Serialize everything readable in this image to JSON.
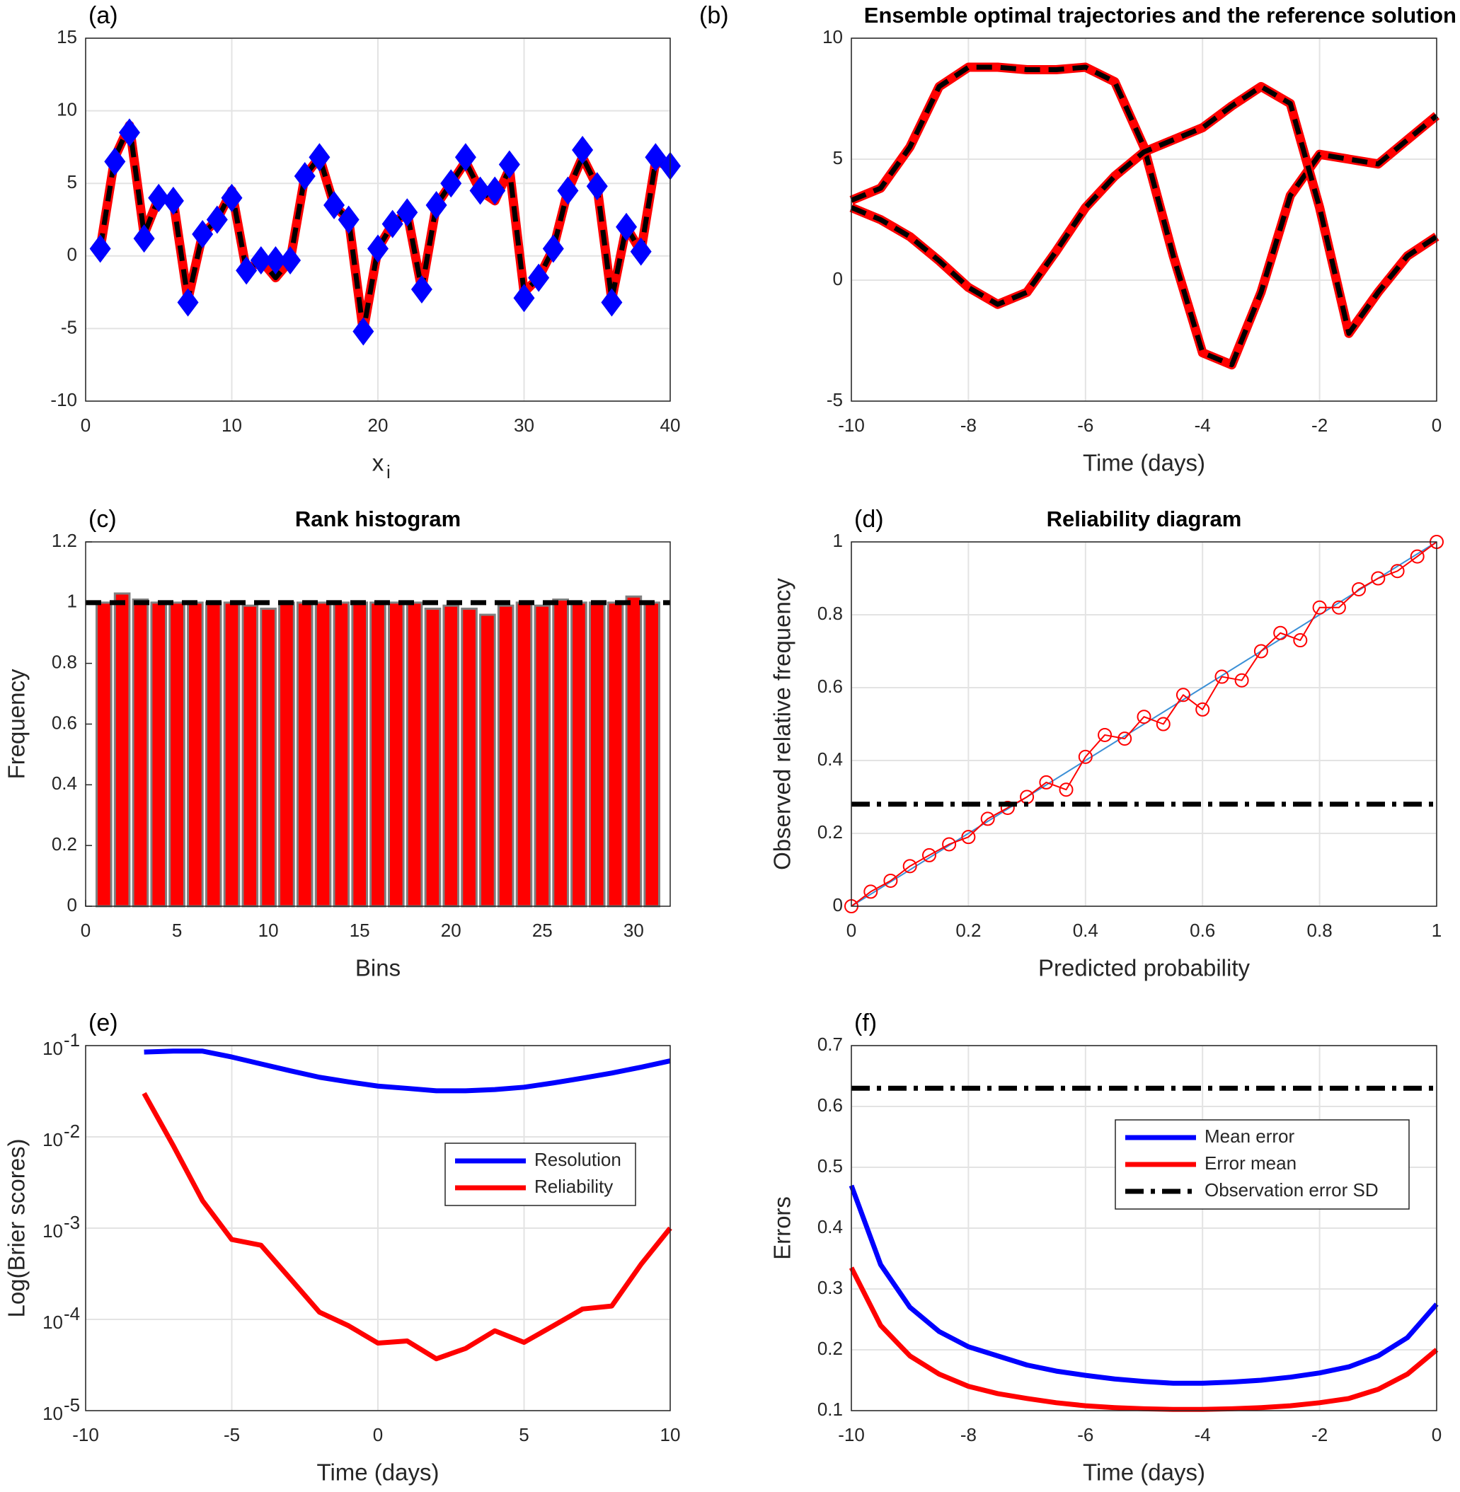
{
  "chart_data": [
    {
      "type": "line",
      "label": "(a)",
      "xlabel": "x",
      "xlabel_sub": "i",
      "x": [
        1,
        2,
        3,
        4,
        5,
        6,
        7,
        8,
        9,
        10,
        11,
        12,
        13,
        14,
        15,
        16,
        17,
        18,
        19,
        20,
        21,
        22,
        23,
        24,
        25,
        26,
        27,
        28,
        29,
        30,
        31,
        32,
        33,
        34,
        35,
        36,
        37,
        38,
        39,
        40
      ],
      "xlim": [
        0,
        40
      ],
      "xticks": [
        0,
        10,
        20,
        30,
        40
      ],
      "ylim": [
        -10,
        15
      ],
      "yticks": [
        -10,
        -5,
        0,
        5,
        10,
        15
      ],
      "grid": true,
      "halo_color": "#ff0000",
      "series": [
        {
          "color": "#000000",
          "style": "dashed",
          "values": [
            0.5,
            6.8,
            9,
            1.5,
            4,
            3.8,
            -3,
            1.5,
            2.5,
            4.5,
            -1,
            -0.3,
            -1.5,
            -0.3,
            5.5,
            6.8,
            3.5,
            2.5,
            -5.2,
            0.5,
            2.2,
            3,
            -2.3,
            3.5,
            5,
            6.5,
            4.5,
            3.8,
            6,
            -2.5,
            -1.5,
            0.5,
            4.5,
            6.8,
            4.8,
            -3,
            2,
            0.3,
            6.5,
            6.2
          ]
        },
        {
          "color": "#0000ff",
          "style": "none",
          "marker": "diamond",
          "values": [
            0.5,
            6.5,
            8.5,
            1.2,
            4,
            3.8,
            -3.2,
            1.5,
            2.5,
            4,
            -1,
            -0.3,
            -0.3,
            -0.3,
            5.5,
            6.8,
            3.5,
            2.5,
            -5.2,
            0.5,
            2.2,
            3,
            -2.3,
            3.5,
            5,
            6.8,
            4.5,
            4.5,
            6.3,
            -2.9,
            -1.5,
            0.5,
            4.5,
            7.3,
            4.8,
            -3.2,
            2,
            0.3,
            6.8,
            6.2
          ]
        }
      ]
    },
    {
      "type": "line",
      "label": "(b)",
      "title": "Ensemble optimal trajectories and the reference solution",
      "xlabel": "Time (days)",
      "x": [
        -10,
        -9.5,
        -9,
        -8.5,
        -8,
        -7.5,
        -7,
        -6.5,
        -6,
        -5.5,
        -5,
        -4.5,
        -4,
        -3.5,
        -3,
        -2.5,
        -2,
        -1.5,
        -1,
        -0.5,
        0
      ],
      "xlim": [
        -10,
        0
      ],
      "xticks": [
        -10,
        -8,
        -6,
        -4,
        -2,
        0
      ],
      "ylim": [
        -5,
        10
      ],
      "yticks": [
        -5,
        0,
        5,
        10
      ],
      "grid": true,
      "halo_color": "#ff0000",
      "series": [
        {
          "color": "#000000",
          "style": "dashed",
          "values": [
            3.3,
            3.8,
            5.5,
            8,
            8.8,
            8.8,
            8.7,
            8.7,
            8.8,
            8.2,
            5.5,
            1,
            -3,
            -3.5,
            -0.5,
            3.5,
            5.2,
            5,
            4.8,
            5.8,
            6.8
          ]
        },
        {
          "color": "#000000",
          "style": "dashed",
          "values": [
            3,
            2.5,
            1.8,
            0.8,
            -0.3,
            -1,
            -0.5,
            1.2,
            3,
            4.3,
            5.3,
            5.8,
            6.3,
            7.2,
            8,
            7.3,
            3,
            -2.2,
            -0.5,
            1,
            1.8
          ]
        }
      ]
    },
    {
      "type": "bar",
      "label": "(c)",
      "title": "Rank histogram",
      "xlabel": "Bins",
      "ylabel": "Frequency",
      "x": [
        1,
        2,
        3,
        4,
        5,
        6,
        7,
        8,
        9,
        10,
        11,
        12,
        13,
        14,
        15,
        16,
        17,
        18,
        19,
        20,
        21,
        22,
        23,
        24,
        25,
        26,
        27,
        28,
        29,
        30,
        31
      ],
      "values": [
        1,
        1.03,
        1.01,
        1,
        1,
        1,
        1,
        1,
        0.99,
        0.98,
        1,
        1,
        1,
        1,
        1,
        1,
        1,
        1,
        0.98,
        0.99,
        0.98,
        0.96,
        0.99,
        1,
        0.99,
        1.01,
        1,
        1,
        1,
        1.02,
        1
      ],
      "color": "#ff0000",
      "edge_color": "#808080",
      "reference": 1,
      "reference_color": "#000000",
      "xlim": [
        0,
        32
      ],
      "xticks": [
        0,
        5,
        10,
        15,
        20,
        25,
        30
      ],
      "ylim": [
        0,
        1.2
      ],
      "yticks": [
        0,
        0.2,
        0.4,
        0.6,
        0.8,
        1,
        1.2
      ],
      "grid": false
    },
    {
      "type": "line",
      "label": "(d)",
      "title": "Reliability diagram",
      "xlabel": "Predicted probability",
      "ylabel": "Observed relative frequency",
      "xlim": [
        0,
        1
      ],
      "xticks": [
        0,
        0.2,
        0.4,
        0.6,
        0.8,
        1
      ],
      "ylim": [
        0,
        1
      ],
      "yticks": [
        0,
        0.2,
        0.4,
        0.6,
        0.8,
        1
      ],
      "grid": true,
      "reference": 0.28,
      "reference_color": "#000000",
      "series": [
        {
          "color": "#3b8fd6",
          "style": "thin",
          "x": [
            0,
            1
          ],
          "values": [
            0,
            1
          ]
        },
        {
          "color": "#ff0000",
          "style": "thin",
          "marker": "circle",
          "x": [
            0,
            0.033,
            0.067,
            0.1,
            0.133,
            0.167,
            0.2,
            0.233,
            0.267,
            0.3,
            0.333,
            0.367,
            0.4,
            0.433,
            0.467,
            0.5,
            0.533,
            0.567,
            0.6,
            0.633,
            0.667,
            0.7,
            0.733,
            0.767,
            0.8,
            0.833,
            0.867,
            0.9,
            0.933,
            0.967,
            1
          ],
          "values": [
            0,
            0.04,
            0.07,
            0.11,
            0.14,
            0.17,
            0.19,
            0.24,
            0.27,
            0.3,
            0.34,
            0.32,
            0.41,
            0.47,
            0.46,
            0.52,
            0.5,
            0.58,
            0.54,
            0.63,
            0.62,
            0.7,
            0.75,
            0.73,
            0.82,
            0.82,
            0.87,
            0.9,
            0.92,
            0.96,
            1
          ]
        }
      ]
    },
    {
      "type": "line",
      "label": "(e)",
      "xlabel": "Time (days)",
      "ylabel": "Log(Brier scores)",
      "x": [
        -8,
        -7,
        -6,
        -5,
        -4,
        -3,
        -2,
        -1,
        0,
        1,
        2,
        3,
        4,
        5,
        6,
        7,
        8,
        9,
        10
      ],
      "xlim": [
        -10,
        10
      ],
      "xticks": [
        -10,
        -5,
        0,
        5,
        10
      ],
      "ylog": true,
      "ylim": [
        1e-05,
        0.1
      ],
      "yticks": [
        {
          "value": 1e-05,
          "label": "10",
          "exp": "-5"
        },
        {
          "value": 0.0001,
          "label": "10",
          "exp": "-4"
        },
        {
          "value": 0.001,
          "label": "10",
          "exp": "-3"
        },
        {
          "value": 0.01,
          "label": "10",
          "exp": "-2"
        },
        {
          "value": 0.1,
          "label": "10",
          "exp": "-1"
        }
      ],
      "grid": true,
      "legend": "center right",
      "series": [
        {
          "name": "Resolution",
          "color": "#0000ff",
          "style": "solid",
          "values": [
            0.085,
            0.087,
            0.087,
            0.075,
            0.063,
            0.053,
            0.045,
            0.04,
            0.036,
            0.034,
            0.032,
            0.032,
            0.033,
            0.035,
            0.039,
            0.044,
            0.05,
            0.058,
            0.068
          ]
        },
        {
          "name": "Reliability",
          "color": "#ff0000",
          "style": "solid",
          "values": [
            0.03,
            0.008,
            0.002,
            0.00075,
            0.00065,
            0.00028,
            0.00012,
            8.5e-05,
            5.5e-05,
            5.8e-05,
            3.7e-05,
            4.8e-05,
            7.5e-05,
            5.6e-05,
            8.5e-05,
            0.00013,
            0.00014,
            0.0004,
            0.001
          ]
        }
      ]
    },
    {
      "type": "line",
      "label": "(f)",
      "xlabel": "Time (days)",
      "ylabel": "Errors",
      "x": [
        -10,
        -9.5,
        -9,
        -8.5,
        -8,
        -7.5,
        -7,
        -6.5,
        -6,
        -5.5,
        -5,
        -4.5,
        -4,
        -3.5,
        -3,
        -2.5,
        -2,
        -1.5,
        -1,
        -0.5,
        0
      ],
      "xlim": [
        -10,
        0
      ],
      "xticks": [
        -10,
        -8,
        -6,
        -4,
        -2,
        0
      ],
      "ylim": [
        0.1,
        0.7
      ],
      "yticks": [
        0.1,
        0.2,
        0.3,
        0.4,
        0.5,
        0.6,
        0.7
      ],
      "grid": true,
      "legend": "upper right",
      "series": [
        {
          "name": "Mean error",
          "color": "#0000ff",
          "style": "solid",
          "values": [
            0.47,
            0.34,
            0.27,
            0.23,
            0.205,
            0.19,
            0.175,
            0.165,
            0.158,
            0.152,
            0.148,
            0.145,
            0.145,
            0.147,
            0.15,
            0.155,
            0.162,
            0.172,
            0.19,
            0.22,
            0.275
          ]
        },
        {
          "name": "Error mean",
          "color": "#ff0000",
          "style": "solid",
          "values": [
            0.335,
            0.24,
            0.19,
            0.16,
            0.14,
            0.128,
            0.12,
            0.113,
            0.108,
            0.105,
            0.103,
            0.102,
            0.102,
            0.103,
            0.105,
            0.108,
            0.113,
            0.12,
            0.135,
            0.16,
            0.2
          ]
        },
        {
          "name": "Observation error SD",
          "color": "#000000",
          "style": "dashdot",
          "x": [
            -10,
            0
          ],
          "values": [
            0.63,
            0.63
          ]
        }
      ]
    }
  ]
}
